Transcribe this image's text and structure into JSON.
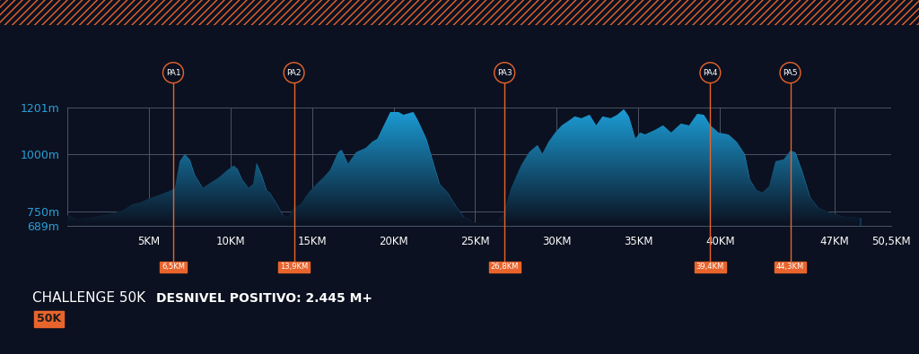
{
  "chart_data": {
    "type": "area",
    "title": "CHALLENGE 50K",
    "subtitle": "DESNIVEL POSITIVO: 2.445 M+",
    "logo": "50K",
    "x": [
      0.0,
      0.5,
      1.3,
      2.4,
      3.4,
      4.0,
      4.5,
      5.0,
      5.6,
      6.3,
      6.6,
      6.9,
      7.2,
      7.5,
      7.8,
      8.3,
      8.7,
      9.3,
      9.8,
      10.2,
      10.4,
      10.7,
      11.1,
      11.4,
      11.6,
      11.9,
      12.2,
      12.4,
      12.9,
      13.2,
      13.5,
      13.9,
      14.3,
      14.8,
      15.3,
      15.7,
      16.1,
      16.6,
      16.8,
      17.2,
      17.7,
      18.3,
      18.7,
      19.0,
      19.4,
      19.8,
      20.3,
      20.6,
      21.2,
      21.5,
      22.0,
      22.4,
      22.8,
      23.3,
      23.8,
      24.3,
      24.9,
      25.4,
      26.2,
      26.7,
      27.2,
      27.8,
      28.3,
      28.8,
      29.1,
      29.5,
      29.9,
      30.3,
      30.7,
      31.1,
      31.5,
      32.0,
      32.4,
      32.8,
      33.3,
      33.7,
      34.1,
      34.4,
      34.8,
      35.1,
      35.4,
      36.0,
      36.5,
      37.0,
      37.6,
      38.1,
      38.6,
      39.0,
      39.4,
      39.9,
      40.5,
      41.0,
      41.5,
      41.8,
      42.2,
      42.6,
      43.0,
      43.4,
      43.9,
      44.3,
      44.6,
      45.0,
      45.5,
      46.0,
      46.8,
      47.6,
      48.6
    ],
    "values": [
      737,
      717,
      725,
      737,
      756,
      783,
      791,
      807,
      822,
      841,
      853,
      969,
      1000,
      977,
      911,
      853,
      872,
      899,
      930,
      950,
      938,
      892,
      853,
      872,
      961,
      911,
      845,
      834,
      776,
      737,
      725,
      768,
      783,
      834,
      872,
      899,
      930,
      1008,
      1019,
      957,
      1008,
      1027,
      1054,
      1066,
      1124,
      1182,
      1182,
      1170,
      1182,
      1143,
      1066,
      969,
      872,
      834,
      776,
      729,
      706,
      698,
      698,
      737,
      853,
      950,
      1008,
      1039,
      1000,
      1054,
      1093,
      1124,
      1143,
      1163,
      1155,
      1170,
      1124,
      1163,
      1155,
      1170,
      1194,
      1163,
      1066,
      1093,
      1085,
      1104,
      1124,
      1093,
      1132,
      1124,
      1174,
      1170,
      1124,
      1093,
      1085,
      1054,
      1000,
      892,
      845,
      834,
      861,
      969,
      977,
      1015,
      1008,
      930,
      814,
      768,
      745,
      729,
      725
    ],
    "color": "#1c9fd9",
    "xlim": [
      0,
      50.5
    ],
    "xticks": [
      {
        "value": 5,
        "label": "5KM"
      },
      {
        "value": 10,
        "label": "10KM"
      },
      {
        "value": 15,
        "label": "15KM"
      },
      {
        "value": 20,
        "label": "20KM"
      },
      {
        "value": 25,
        "label": "25KM"
      },
      {
        "value": 30,
        "label": "30KM"
      },
      {
        "value": 35,
        "label": "35KM"
      },
      {
        "value": 40,
        "label": "40KM"
      },
      {
        "value": 47,
        "label": "47KM"
      },
      {
        "value": 50.5,
        "label": "50,5KM"
      }
    ],
    "ylim": [
      689,
      1201
    ],
    "yticks": [
      {
        "value": 689,
        "label": "689m"
      },
      {
        "value": 750,
        "label": "750m"
      },
      {
        "value": 1000,
        "label": "1000m"
      },
      {
        "value": 1201,
        "label": "1201m"
      }
    ],
    "grid": true,
    "aid_stations": [
      {
        "name": "PA1",
        "value": 6.5,
        "label": "6,5KM"
      },
      {
        "name": "PA2",
        "value": 13.9,
        "label": "13,9KM"
      },
      {
        "name": "PA3",
        "value": 26.8,
        "label": "26,8KM"
      },
      {
        "name": "PA4",
        "value": 39.4,
        "label": "39,4KM"
      },
      {
        "name": "PA5",
        "value": 44.3,
        "label": "44,3KM"
      }
    ],
    "aid_color": "#e8642c"
  }
}
